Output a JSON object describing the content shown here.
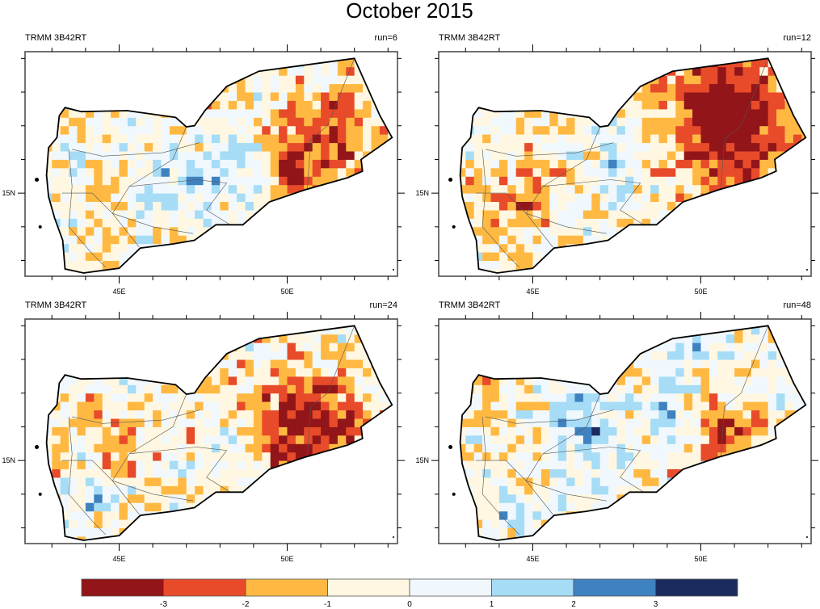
{
  "title": "October 2015",
  "panels": [
    {
      "left_label": "TRMM 3B42RT",
      "right_label": "run=6"
    },
    {
      "left_label": "TRMM 3B42RT",
      "right_label": "run=12"
    },
    {
      "left_label": "TRMM 3B42RT",
      "right_label": "run=24"
    },
    {
      "left_label": "TRMM 3B42RT",
      "right_label": "run=48"
    }
  ],
  "axes": {
    "x_ticks": [
      "45E",
      "50E"
    ],
    "y_ticks": [
      "15N"
    ],
    "lon_range": [
      42.2,
      53.3
    ],
    "lat_range": [
      12.5,
      19.2
    ]
  },
  "colorbar": {
    "labels": [
      "-3",
      "-2",
      "-1",
      "0",
      "1",
      "2",
      "3"
    ],
    "colors": [
      "#921519",
      "#e84b2a",
      "#ffb943",
      "#fff7e1",
      "#f0f8fd",
      "#a6dcf6",
      "#3f82c0",
      "#1b2b5e"
    ]
  }
}
